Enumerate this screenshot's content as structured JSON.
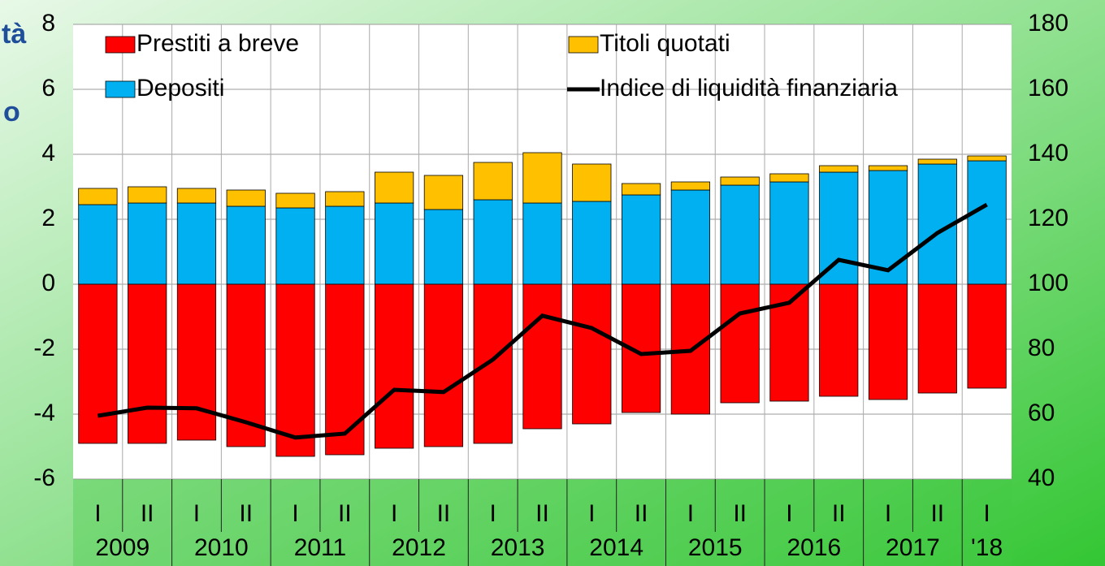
{
  "fragments": [
    "tà",
    "o"
  ],
  "chart_data": {
    "type": "bar",
    "categories": [
      "I",
      "II",
      "I",
      "II",
      "I",
      "II",
      "I",
      "II",
      "I",
      "II",
      "I",
      "II",
      "I",
      "II",
      "I",
      "II",
      "I",
      "II",
      "I"
    ],
    "years": [
      "2009",
      "2010",
      "2011",
      "2012",
      "2013",
      "2014",
      "2015",
      "2016",
      "2017",
      "'18"
    ],
    "series": [
      {
        "name": "Prestiti a breve",
        "color": "#ff0000",
        "values": [
          -4.9,
          -4.9,
          -4.8,
          -5.0,
          -5.3,
          -5.25,
          -5.05,
          -5.0,
          -4.9,
          -4.45,
          -4.3,
          -3.95,
          -4.0,
          -3.65,
          -3.6,
          -3.45,
          -3.55,
          -3.35,
          -3.2
        ]
      },
      {
        "name": "Titoli quotati",
        "color": "#ffc000",
        "values": [
          0.5,
          0.5,
          0.45,
          0.5,
          0.45,
          0.45,
          0.95,
          1.05,
          1.15,
          1.55,
          1.15,
          0.35,
          0.25,
          0.25,
          0.25,
          0.2,
          0.15,
          0.15,
          0.15
        ]
      },
      {
        "name": "Depositi",
        "color": "#00b0f0",
        "values": [
          2.45,
          2.5,
          2.5,
          2.4,
          2.35,
          2.4,
          2.5,
          2.3,
          2.6,
          2.5,
          2.55,
          2.75,
          2.9,
          3.05,
          3.15,
          3.45,
          3.5,
          3.7,
          3.8
        ]
      },
      {
        "name": "Indice di liquidità finanziaria",
        "color": "#000000",
        "axis": "y2",
        "values": [
          59.5,
          62,
          61.8,
          57.5,
          52.8,
          54,
          67.5,
          66.8,
          76.8,
          90.3,
          86.5,
          78.5,
          79.5,
          91,
          94.3,
          107.5,
          104.3,
          115.8,
          124.5
        ]
      }
    ],
    "ylim": [
      -6,
      8
    ],
    "yticks": [
      -6,
      -4,
      -2,
      0,
      2,
      4,
      6,
      8
    ],
    "y2lim": [
      40,
      180
    ],
    "y2ticks": [
      40,
      60,
      80,
      100,
      120,
      140,
      160,
      180
    ],
    "grid": true
  }
}
